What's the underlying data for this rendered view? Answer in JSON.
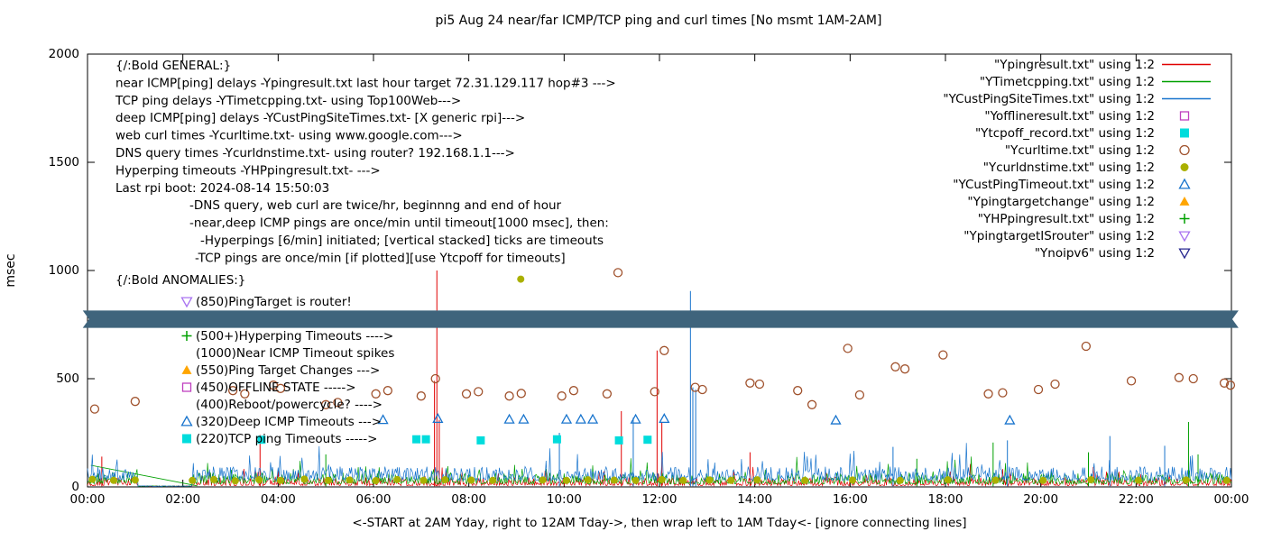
{
  "title": "pi5 Aug 24  near/far ICMP/TCP ping and curl times [No msmt 1AM-2AM]",
  "axes": {
    "ylabel": "msec",
    "xlabel": "<-START at 2AM Yday, right to 12AM Tday->, then wrap left to 1AM Tday<- [ignore connecting lines]",
    "yticks": [
      0,
      500,
      1000,
      1500,
      2000
    ],
    "xticks": [
      "00:00",
      "02:00",
      "04:00",
      "06:00",
      "08:00",
      "10:00",
      "12:00",
      "14:00",
      "16:00",
      "18:00",
      "20:00",
      "22:00",
      "00:00"
    ]
  },
  "legend": [
    {
      "label": "\"Ypingresult.txt\" using 1:2",
      "marker": "line",
      "color": "#e00000"
    },
    {
      "label": "\"YTimetcpping.txt\" using 1:2",
      "marker": "line",
      "color": "#00a000"
    },
    {
      "label": "\"YCustPingSiteTimes.txt\" using 1:2",
      "marker": "line",
      "color": "#1874cd"
    },
    {
      "label": "\"Yofflineresult.txt\" using 1:2",
      "marker": "square-open",
      "color": "#bf40bf"
    },
    {
      "label": "\"Ytcpoff_record.txt\" using 1:2",
      "marker": "square-filled",
      "color": "#00dcdc"
    },
    {
      "label": "\"Ycurltime.txt\" using 1:2",
      "marker": "circle-open",
      "color": "#a0522d"
    },
    {
      "label": "\"Ycurldnstime.txt\" using 1:2",
      "marker": "circle-filled",
      "color": "#aab000"
    },
    {
      "label": "\"YCustPingTimeout.txt\" using 1:2",
      "marker": "tri-up-open",
      "color": "#1874cd"
    },
    {
      "label": "\"Ypingtargetchange\" using 1:2",
      "marker": "tri-up-filled",
      "color": "#ffa500"
    },
    {
      "label": "\"YHPpingresult.txt\" using 1:2",
      "marker": "plus",
      "color": "#00a000"
    },
    {
      "label": "\"YpingtargetISrouter\" using 1:2",
      "marker": "tri-down-open",
      "color": "#a873f0"
    },
    {
      "label": "\"Ynoipv6\" using 1:2",
      "marker": "tri-down-open",
      "color": "#282890"
    }
  ],
  "annotations": {
    "general": [
      {
        "text": "{/:Bold GENERAL:}",
        "indent": 0
      },
      {
        "text": "near ICMP[ping] delays -Ypingresult.txt last hour target 72.31.129.117 hop#3 --->",
        "indent": 0
      },
      {
        "text": "TCP ping delays -YTimetcpping.txt- using Top100Web--->",
        "indent": 0
      },
      {
        "text": "deep ICMP[ping] delays -YCustPingSiteTimes.txt- [X generic rpi]--->",
        "indent": 0
      },
      {
        "text": "web curl times -Ycurltime.txt- using www.google.com--->",
        "indent": 0
      },
      {
        "text": "DNS query times -Ycurldnstime.txt- using router? 192.168.1.1--->",
        "indent": 0
      },
      {
        "text": "Hyperping timeouts -YHPpingresult.txt- --->",
        "indent": 0
      },
      {
        "text": "Last rpi boot: 2024-08-14 15:50:03",
        "indent": 0
      },
      {
        "text": "-DNS query, web curl are twice/hr, beginnng and end of hour",
        "indent": 82
      },
      {
        "text": "-near,deep ICMP pings are once/min until timeout[1000 msec], then:",
        "indent": 82
      },
      {
        "text": "-Hyperpings [6/min] initiated; [vertical stacked] ticks are timeouts",
        "indent": 94
      },
      {
        "text": "-TCP pings are once/min [if plotted][use Ytcpoff for timeouts]",
        "indent": 88
      }
    ],
    "anomalies_title": "{/:Bold ANOMALIES:}",
    "anomalies": [
      {
        "text": "(850)PingTarget is router!",
        "marker": "tri-down-open",
        "color": "#a873f0"
      },
      {
        "text": "(500+)Hyperping Timeouts ---->",
        "marker": "plus",
        "color": "#00a000"
      },
      {
        "text": "(1000)Near ICMP Timeout spikes",
        "marker": "none",
        "color": ""
      },
      {
        "text": "(550)Ping Target Changes --->",
        "marker": "tri-up-filled",
        "color": "#ffa500"
      },
      {
        "text": "(450)OFFLINE STATE ----->",
        "marker": "square-open",
        "color": "#bf40bf"
      },
      {
        "text": "(400)Reboot/powercycle? ---->",
        "marker": "none",
        "color": ""
      },
      {
        "text": "(320)Deep ICMP Timeouts --->",
        "marker": "tri-up-open",
        "color": "#1874cd"
      },
      {
        "text": "(220)TCP ping Timeouts ----->",
        "marker": "square-filled",
        "color": "#00dcdc"
      }
    ]
  },
  "chart_data": {
    "type": "line+scatter",
    "x_axis": {
      "unit": "hours",
      "range": [
        0,
        24
      ]
    },
    "y_axis": {
      "unit": "msec",
      "range": [
        0,
        2000
      ],
      "ticks": [
        0,
        500,
        1000,
        1500,
        2000
      ]
    },
    "noise_series": [
      {
        "name": "Ypingresult-near-icmp",
        "color": "#e00000",
        "base": 6,
        "amp": 38,
        "quiet_hours": [
          1.05,
          2.2
        ],
        "seed": 101,
        "spikes": [
          [
            0.3,
            140
          ],
          [
            3.62,
            240
          ],
          [
            7.28,
            490
          ],
          [
            7.33,
            1000
          ],
          [
            7.38,
            310
          ],
          [
            11.2,
            350
          ],
          [
            11.95,
            630
          ],
          [
            12.05,
            300
          ],
          [
            13.9,
            160
          ]
        ]
      },
      {
        "name": "YTimetcpping-tcp-ping",
        "color": "#00a000",
        "base": 14,
        "amp": 52,
        "quiet_hours": [
          1.05,
          2.2
        ],
        "seed": 202,
        "spikes": [
          [
            5.0,
            150
          ],
          [
            17.4,
            130
          ],
          [
            19.0,
            205
          ],
          [
            21.0,
            160
          ],
          [
            23.1,
            300
          ],
          [
            23.3,
            150
          ]
        ],
        "segments": [
          [
            [
              0.07,
              100
            ],
            [
              2.3,
              5
            ]
          ]
        ]
      },
      {
        "name": "YCustPingSiteTimes-deep-icmp",
        "color": "#1874cd",
        "base": 30,
        "amp": 64,
        "quiet_hours": [
          1.05,
          2.2
        ],
        "seed": 303,
        "spikes": [
          [
            9.9,
            250
          ],
          [
            11.45,
            320
          ],
          [
            12.65,
            905
          ],
          [
            12.7,
            460
          ],
          [
            12.76,
            450
          ],
          [
            16.9,
            185
          ],
          [
            19.3,
            215
          ],
          [
            21.45,
            235
          ],
          [
            22.6,
            190
          ]
        ]
      }
    ],
    "scatter_series": [
      {
        "name": "Ycurltime-web-curl",
        "marker": "circle-open",
        "color": "#a0522d",
        "points": [
          [
            0.15,
            360
          ],
          [
            1.0,
            395
          ],
          [
            3.05,
            445
          ],
          [
            3.3,
            430
          ],
          [
            3.9,
            470
          ],
          [
            4.05,
            455
          ],
          [
            5.0,
            380
          ],
          [
            5.25,
            390
          ],
          [
            6.05,
            430
          ],
          [
            6.3,
            445
          ],
          [
            7.0,
            420
          ],
          [
            7.3,
            500
          ],
          [
            7.95,
            430
          ],
          [
            8.2,
            440
          ],
          [
            8.85,
            420
          ],
          [
            9.1,
            432
          ],
          [
            9.95,
            420
          ],
          [
            10.2,
            445
          ],
          [
            10.9,
            430
          ],
          [
            11.13,
            990
          ],
          [
            11.9,
            440
          ],
          [
            12.1,
            630
          ],
          [
            12.75,
            460
          ],
          [
            12.9,
            450
          ],
          [
            13.9,
            480
          ],
          [
            14.1,
            475
          ],
          [
            14.9,
            445
          ],
          [
            15.2,
            380
          ],
          [
            15.95,
            640
          ],
          [
            16.2,
            425
          ],
          [
            16.95,
            555
          ],
          [
            17.15,
            545
          ],
          [
            17.95,
            610
          ],
          [
            18.9,
            430
          ],
          [
            19.2,
            435
          ],
          [
            19.95,
            450
          ],
          [
            20.3,
            475
          ],
          [
            20.95,
            650
          ],
          [
            21.9,
            490
          ],
          [
            22.9,
            505
          ],
          [
            23.2,
            500
          ],
          [
            23.85,
            480
          ],
          [
            23.98,
            470
          ]
        ]
      },
      {
        "name": "Ycurldnstime-dns-query",
        "marker": "circle-filled",
        "color": "#aab000",
        "points": [
          [
            0.1,
            35
          ],
          [
            0.55,
            30
          ],
          [
            1.0,
            32
          ],
          [
            2.2,
            30
          ],
          [
            2.65,
            34
          ],
          [
            3.1,
            28
          ],
          [
            3.6,
            33
          ],
          [
            4.05,
            30
          ],
          [
            4.55,
            36
          ],
          [
            5.05,
            30
          ],
          [
            5.5,
            32
          ],
          [
            6.05,
            29
          ],
          [
            6.5,
            34
          ],
          [
            7.05,
            30
          ],
          [
            7.5,
            33
          ],
          [
            8.05,
            31
          ],
          [
            8.5,
            30
          ],
          [
            9.09,
            960
          ],
          [
            9.55,
            32
          ],
          [
            10.05,
            30
          ],
          [
            10.5,
            33
          ],
          [
            11.05,
            31
          ],
          [
            11.5,
            30
          ],
          [
            12.05,
            34
          ],
          [
            12.5,
            30
          ],
          [
            13.05,
            32
          ],
          [
            13.5,
            30
          ],
          [
            14.05,
            33
          ],
          [
            15.05,
            30
          ],
          [
            16.05,
            32
          ],
          [
            17.05,
            30
          ],
          [
            18.05,
            33
          ],
          [
            19.05,
            31
          ],
          [
            20.05,
            30
          ],
          [
            21.05,
            33
          ],
          [
            22.05,
            31
          ],
          [
            23.05,
            32
          ],
          [
            23.9,
            30
          ]
        ]
      },
      {
        "name": "YCustPingTimeout-deep-icmp-timeouts",
        "marker": "tri-up-open",
        "color": "#1874cd",
        "points": [
          [
            6.2,
            310
          ],
          [
            7.35,
            315
          ],
          [
            8.85,
            312
          ],
          [
            9.15,
            312
          ],
          [
            10.05,
            312
          ],
          [
            10.35,
            312
          ],
          [
            10.6,
            312
          ],
          [
            11.5,
            312
          ],
          [
            12.1,
            315
          ],
          [
            15.7,
            308
          ],
          [
            19.35,
            308
          ]
        ]
      },
      {
        "name": "Ytcpoff-record-tcp-timeouts",
        "marker": "square-filled",
        "color": "#00dcdc",
        "points": [
          [
            3.65,
            218
          ],
          [
            6.9,
            220
          ],
          [
            7.1,
            220
          ],
          [
            8.25,
            215
          ],
          [
            9.85,
            220
          ],
          [
            11.15,
            215
          ],
          [
            11.75,
            218
          ]
        ]
      }
    ],
    "band": {
      "label": "780-msec-band",
      "y_msec": [
        735,
        815
      ],
      "x_hours": [
        -0.1,
        24.15
      ],
      "color": "#3f647c"
    }
  }
}
